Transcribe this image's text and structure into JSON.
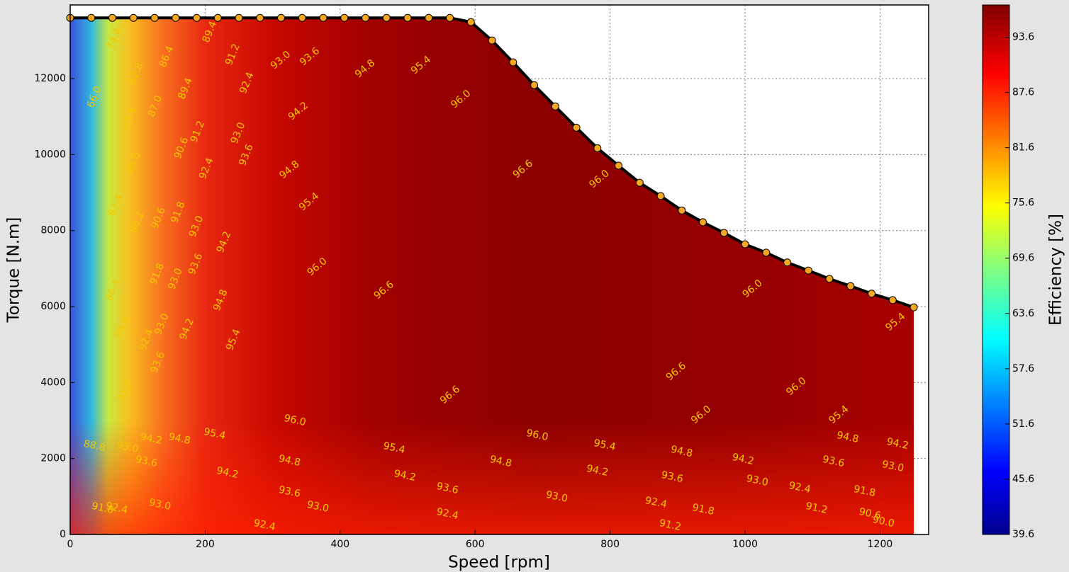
{
  "chart_data": {
    "type": "contour",
    "x_label": "Speed [rpm]",
    "y_label": "Torque [N.m]",
    "colorbar_label": "Efficiency [%]",
    "xlim": [
      0,
      1272
    ],
    "ylim": [
      0,
      13940
    ],
    "xticks": [
      0,
      200,
      400,
      600,
      800,
      1000,
      1200
    ],
    "yticks": [
      0,
      2000,
      4000,
      6000,
      8000,
      10000,
      12000
    ],
    "grid": true,
    "clim": [
      39.6,
      97.1
    ],
    "cticks": [
      39.6,
      45.6,
      51.6,
      57.6,
      63.6,
      69.6,
      75.6,
      81.6,
      87.6,
      93.6
    ],
    "colormap": "jet",
    "series": [
      {
        "color": "#000000",
        "marker_color": "#f5a623",
        "x": [
          0,
          31.25,
          62.5,
          93.75,
          125,
          156.25,
          187.5,
          218.75,
          250,
          281.25,
          312.5,
          343.75,
          375,
          406.25,
          437.5,
          468.75,
          500,
          531.25,
          562.5,
          593.75,
          625,
          656.25,
          687.5,
          718.75,
          750,
          781.25,
          812.5,
          843.75,
          875,
          906.25,
          937.5,
          968.75,
          1000,
          1031.25,
          1062.5,
          1093.75,
          1125,
          1156.25,
          1187.5,
          1218.75,
          1250
        ],
        "values": [
          13600,
          13600,
          13600,
          13600,
          13600,
          13600,
          13600,
          13600,
          13600,
          13600,
          13600,
          13600,
          13600,
          13600,
          13600,
          13600,
          13600,
          13600,
          13600,
          13490,
          13005,
          12430,
          11830,
          11270,
          10710,
          10170,
          9710,
          9260,
          8910,
          8530,
          8220,
          7940,
          7640,
          7420,
          7160,
          6950,
          6730,
          6540,
          6340,
          6170,
          5980
        ]
      }
    ],
    "contour_labels": [
      {
        "text": "74.4",
        "speed": 66,
        "torque": 13043
      },
      {
        "text": "66.0",
        "speed": 36,
        "torque": 11515
      },
      {
        "text": "82.8",
        "speed": 98,
        "torque": 12130
      },
      {
        "text": "86.4",
        "speed": 143,
        "torque": 12577
      },
      {
        "text": "89.4",
        "speed": 207,
        "torque": 13229
      },
      {
        "text": "91.2",
        "speed": 241,
        "torque": 12633
      },
      {
        "text": "93.0",
        "speed": 312,
        "torque": 12484
      },
      {
        "text": "93.6",
        "speed": 355,
        "torque": 12577
      },
      {
        "text": "94.8",
        "speed": 437,
        "torque": 12260
      },
      {
        "text": "95.4",
        "speed": 520,
        "torque": 12353
      },
      {
        "text": "83.4",
        "speed": 88,
        "torque": 10956
      },
      {
        "text": "87.0",
        "speed": 126,
        "torque": 11272
      },
      {
        "text": "89.4",
        "speed": 171,
        "torque": 11738
      },
      {
        "text": "92.4",
        "speed": 262,
        "torque": 11887
      },
      {
        "text": "96.0",
        "speed": 579,
        "torque": 11459
      },
      {
        "text": "94.2",
        "speed": 338,
        "torque": 11142
      },
      {
        "text": "85.8",
        "speed": 94,
        "torque": 9782
      },
      {
        "text": "90.6",
        "speed": 165,
        "torque": 10173
      },
      {
        "text": "91.2",
        "speed": 189,
        "torque": 10602
      },
      {
        "text": "93.0",
        "speed": 249,
        "torque": 10565
      },
      {
        "text": "93.6",
        "speed": 261,
        "torque": 9987
      },
      {
        "text": "92.4",
        "speed": 202,
        "torque": 9633
      },
      {
        "text": "94.8",
        "speed": 325,
        "torque": 9596
      },
      {
        "text": "96.6",
        "speed": 671,
        "torque": 9614
      },
      {
        "text": "96.0",
        "speed": 784,
        "torque": 9354
      },
      {
        "text": "95.4",
        "speed": 354,
        "torque": 8757
      },
      {
        "text": "83.4",
        "speed": 68,
        "torque": 8664
      },
      {
        "text": "88.2",
        "speed": 99,
        "torque": 8217
      },
      {
        "text": "90.6",
        "speed": 131,
        "torque": 8329
      },
      {
        "text": "91.8",
        "speed": 160,
        "torque": 8478
      },
      {
        "text": "93.0",
        "speed": 187,
        "torque": 8105
      },
      {
        "text": "94.2",
        "speed": 228,
        "torque": 7695
      },
      {
        "text": "91.8",
        "speed": 129,
        "torque": 6857
      },
      {
        "text": "93.0",
        "speed": 156,
        "torque": 6726
      },
      {
        "text": "93.6",
        "speed": 186,
        "torque": 7118
      },
      {
        "text": "96.0",
        "speed": 366,
        "torque": 7043
      },
      {
        "text": "96.6",
        "speed": 465,
        "torque": 6428
      },
      {
        "text": "96.0",
        "speed": 1011,
        "torque": 6465
      },
      {
        "text": "94.8",
        "speed": 223,
        "torque": 6167
      },
      {
        "text": "86.4",
        "speed": 63,
        "torque": 6428
      },
      {
        "text": "89.4",
        "speed": 77,
        "torque": 5459
      },
      {
        "text": "92.4",
        "speed": 113,
        "torque": 5124
      },
      {
        "text": "93.0",
        "speed": 136,
        "torque": 5534
      },
      {
        "text": "94.2",
        "speed": 173,
        "torque": 5403
      },
      {
        "text": "95.4",
        "speed": 242,
        "torque": 5124
      },
      {
        "text": "93.6",
        "speed": 130,
        "torque": 4528
      },
      {
        "text": "95.4",
        "speed": 1223,
        "torque": 5590
      },
      {
        "text": "96.6",
        "speed": 898,
        "torque": 4286
      },
      {
        "text": "91.8",
        "speed": 81,
        "torque": 3782
      },
      {
        "text": "96.6",
        "speed": 563,
        "torque": 3671
      },
      {
        "text": "96.0",
        "speed": 1076,
        "torque": 3894
      },
      {
        "text": "96.0",
        "speed": 333,
        "torque": 3000
      },
      {
        "text": "96.0",
        "speed": 935,
        "torque": 3149
      },
      {
        "text": "95.4",
        "speed": 1139,
        "torque": 3149
      },
      {
        "text": "88.8",
        "speed": 36,
        "torque": 2329
      },
      {
        "text": "93.0",
        "speed": 85,
        "torque": 2292
      },
      {
        "text": "94.2",
        "speed": 120,
        "torque": 2515
      },
      {
        "text": "94.8",
        "speed": 162,
        "torque": 2515
      },
      {
        "text": "95.4",
        "speed": 214,
        "torque": 2646
      },
      {
        "text": "96.0",
        "speed": 692,
        "torque": 2609
      },
      {
        "text": "94.8",
        "speed": 1152,
        "torque": 2553
      },
      {
        "text": "94.2",
        "speed": 1226,
        "torque": 2385
      },
      {
        "text": "95.4",
        "speed": 480,
        "torque": 2273
      },
      {
        "text": "95.4",
        "speed": 792,
        "torque": 2348
      },
      {
        "text": "93.6",
        "speed": 113,
        "torque": 1919
      },
      {
        "text": "94.8",
        "speed": 325,
        "torque": 1938
      },
      {
        "text": "94.8",
        "speed": 638,
        "torque": 1919
      },
      {
        "text": "94.8",
        "speed": 906,
        "torque": 2180
      },
      {
        "text": "94.2",
        "speed": 997,
        "torque": 1975
      },
      {
        "text": "93.6",
        "speed": 1131,
        "torque": 1919
      },
      {
        "text": "93.0",
        "speed": 1219,
        "torque": 1789
      },
      {
        "text": "94.2",
        "speed": 233,
        "torque": 1621
      },
      {
        "text": "94.2",
        "speed": 496,
        "torque": 1546
      },
      {
        "text": "94.2",
        "speed": 781,
        "torque": 1677
      },
      {
        "text": "93.6",
        "speed": 892,
        "torque": 1509
      },
      {
        "text": "93.0",
        "speed": 1018,
        "torque": 1416
      },
      {
        "text": "93.6",
        "speed": 325,
        "torque": 1118
      },
      {
        "text": "93.6",
        "speed": 559,
        "torque": 1211
      },
      {
        "text": "93.0",
        "speed": 721,
        "torque": 988
      },
      {
        "text": "92.4",
        "speed": 1081,
        "torque": 1230
      },
      {
        "text": "91.8",
        "speed": 1177,
        "torque": 1137
      },
      {
        "text": "91.8",
        "speed": 48,
        "torque": 689
      },
      {
        "text": "92.4",
        "speed": 69,
        "torque": 689
      },
      {
        "text": "93.0",
        "speed": 133,
        "torque": 783
      },
      {
        "text": "93.0",
        "speed": 367,
        "torque": 727
      },
      {
        "text": "92.4",
        "speed": 868,
        "torque": 838
      },
      {
        "text": "91.8",
        "speed": 938,
        "torque": 652
      },
      {
        "text": "91.2",
        "speed": 1106,
        "torque": 689
      },
      {
        "text": "90.6",
        "speed": 1185,
        "torque": 540
      },
      {
        "text": "92.4",
        "speed": 288,
        "torque": 242
      },
      {
        "text": "92.4",
        "speed": 559,
        "torque": 540
      },
      {
        "text": "91.2",
        "speed": 889,
        "torque": 242
      },
      {
        "text": "90.0",
        "speed": 1205,
        "torque": 335
      }
    ]
  }
}
